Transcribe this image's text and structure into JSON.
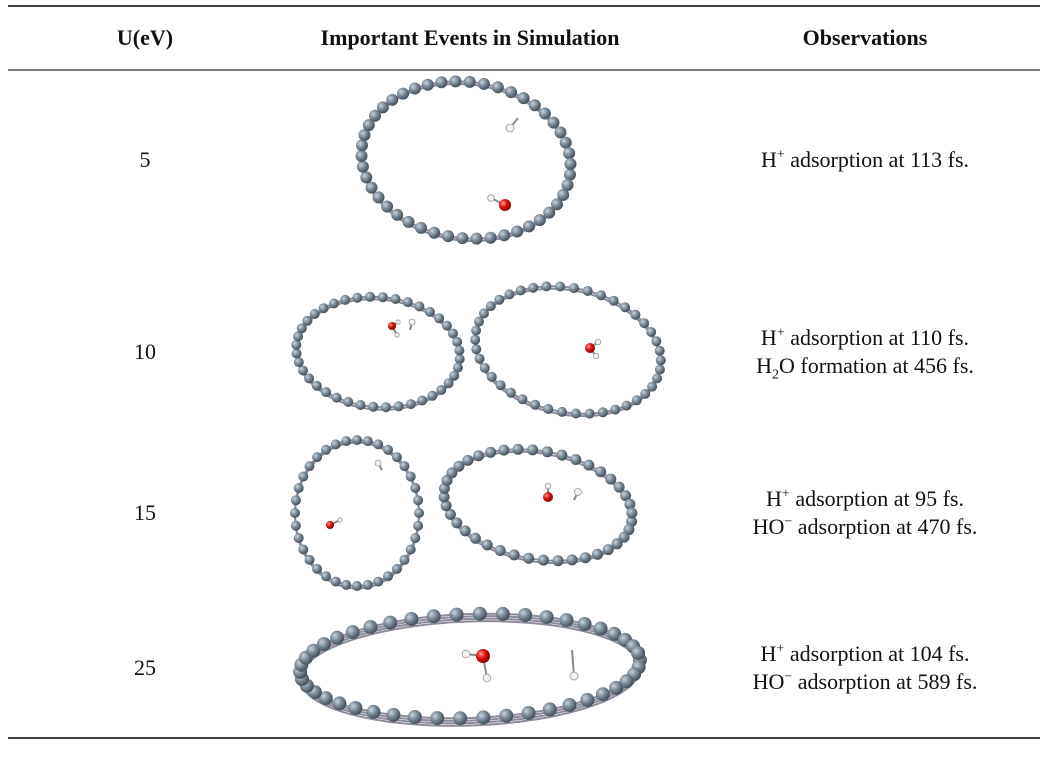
{
  "table": {
    "headers": [
      "U(eV)",
      "Important Events in Simulation",
      "Observations"
    ],
    "rows": [
      {
        "u": 5,
        "observations": [
          [
            {
              "text": "H"
            },
            {
              "sup": "+"
            },
            {
              "text": " adsorption at 113 fs."
            }
          ]
        ]
      },
      {
        "u": 10,
        "observations": [
          [
            {
              "text": "H"
            },
            {
              "sup": "+"
            },
            {
              "text": " adsorption at 110 fs."
            }
          ],
          [
            {
              "text": "H"
            },
            {
              "sub": "2"
            },
            {
              "text": "O formation at 456 fs."
            }
          ]
        ]
      },
      {
        "u": 15,
        "observations": [
          [
            {
              "text": "H"
            },
            {
              "sup": "+"
            },
            {
              "text": " adsorption at 95 fs."
            }
          ],
          [
            {
              "text": "HO"
            },
            {
              "sup": "−"
            },
            {
              "text": " adsorption at 470 fs."
            }
          ]
        ]
      },
      {
        "u": 25,
        "observations": [
          [
            {
              "text": "H"
            },
            {
              "sup": "+"
            },
            {
              "text": " adsorption at 104 fs."
            }
          ],
          [
            {
              "text": "HO"
            },
            {
              "sup": "−"
            },
            {
              "text": " adsorption at 589 fs."
            }
          ]
        ]
      }
    ]
  }
}
